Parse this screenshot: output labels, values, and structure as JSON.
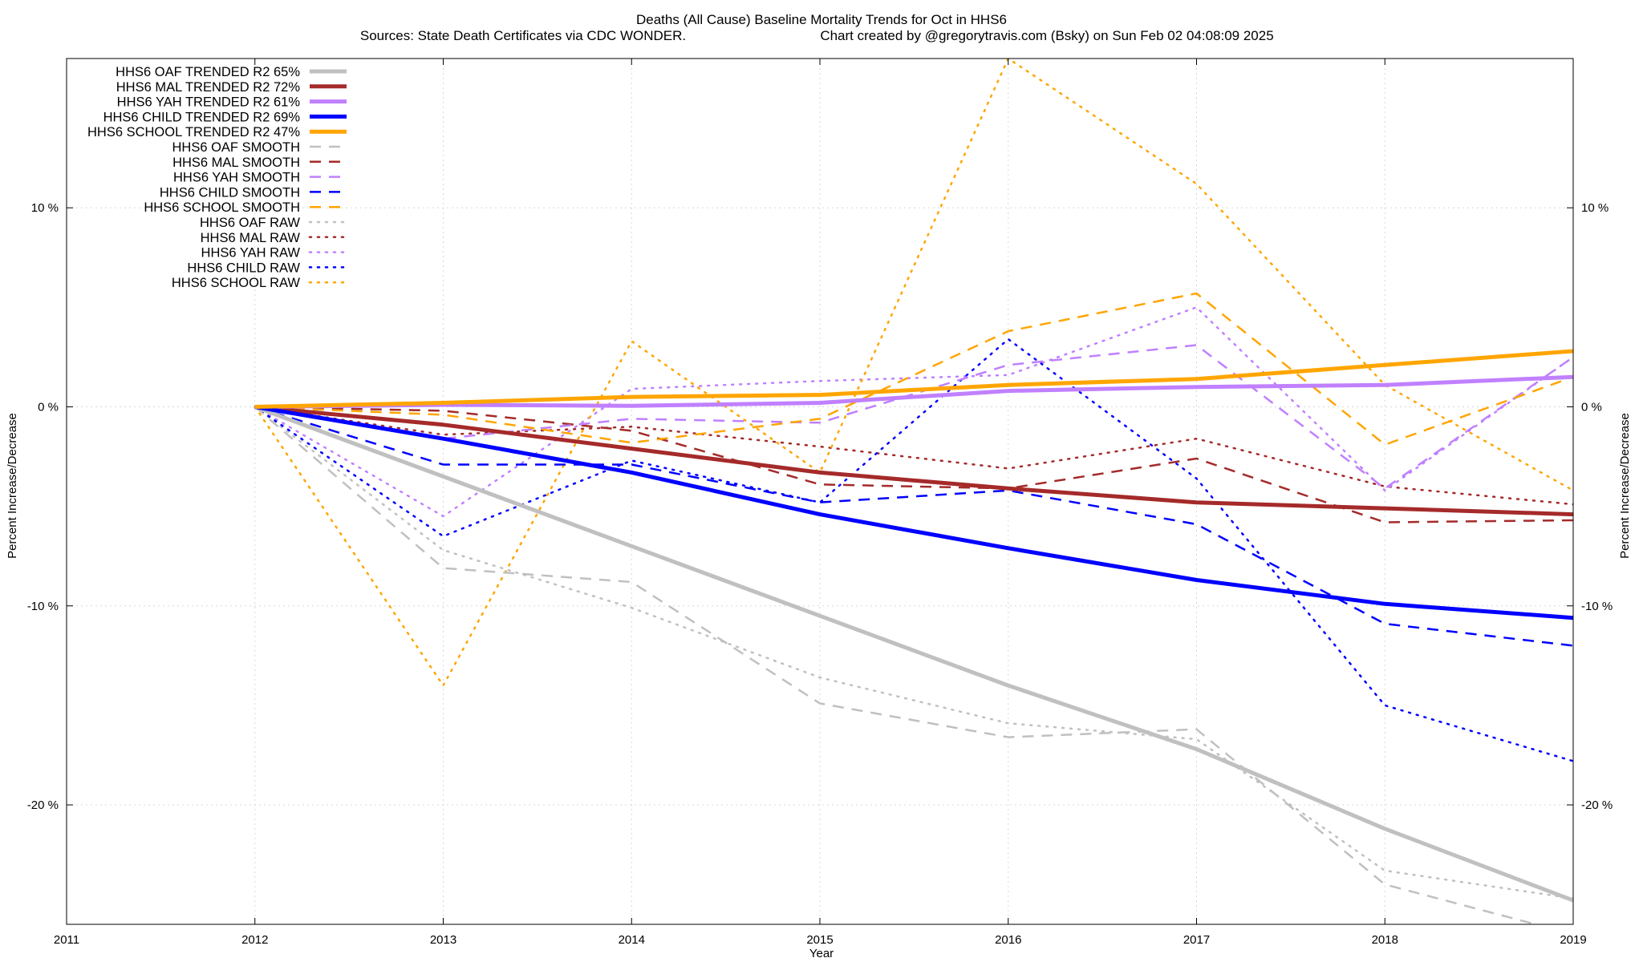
{
  "chart_data": {
    "type": "line",
    "title": "Deaths (All Cause)  Baseline Mortality Trends for Oct in HHS6",
    "subtitle_left": "Sources: State Death Certificates via CDC WONDER.",
    "subtitle_right": "Chart created by @gregorytravis.com (Bsky) on Sun Feb 02 04:08:09 2025",
    "xlabel": "Year",
    "ylabel": "Percent Increase/Decrease",
    "xlim": [
      2011,
      2019
    ],
    "ylim": [
      -26,
      17.5
    ],
    "x_ticks": [
      "2011",
      "2012",
      "2013",
      "2014",
      "2015",
      "2016",
      "2017",
      "2018",
      "2019"
    ],
    "y_ticks": [
      {
        "value": 10,
        "label": "10 %"
      },
      {
        "value": 0,
        "label": "0 %"
      },
      {
        "value": -10,
        "label": "-10 %"
      },
      {
        "value": -20,
        "label": "-20 %"
      }
    ],
    "grid": true,
    "legend_position": "top-left",
    "x": [
      2012,
      2013,
      2014,
      2015,
      2016,
      2017,
      2018,
      2019
    ],
    "series": [
      {
        "name": "HHS6 OAF TRENDED R2  65%",
        "style": "solid",
        "color": "#c0c0c0",
        "values": [
          0,
          -3.5,
          -7.0,
          -10.5,
          -14.0,
          -17.2,
          -21.2,
          -24.8
        ]
      },
      {
        "name": "HHS6 MAL TRENDED R2  72%",
        "style": "solid",
        "color": "#a52a2a",
        "values": [
          0,
          -0.9,
          -2.1,
          -3.3,
          -4.1,
          -4.8,
          -5.1,
          -5.4
        ]
      },
      {
        "name": "HHS6 YAH TRENDED R2  61%",
        "style": "solid",
        "color": "#c080ff",
        "values": [
          0,
          0.1,
          0.05,
          0.2,
          0.8,
          1.0,
          1.1,
          1.5
        ]
      },
      {
        "name": "HHS6 CHILD TRENDED R2  69%",
        "style": "solid",
        "color": "#0000ff",
        "values": [
          0,
          -1.6,
          -3.3,
          -5.4,
          -7.1,
          -8.7,
          -9.9,
          -10.6
        ]
      },
      {
        "name": "HHS6 SCHOOL TRENDED R2  47%",
        "style": "solid",
        "color": "#ffa500",
        "values": [
          0,
          0.2,
          0.5,
          0.6,
          1.1,
          1.4,
          2.1,
          2.8
        ]
      },
      {
        "name": "HHS6 OAF SMOOTH",
        "style": "dashed",
        "color": "#c0c0c0",
        "values": [
          0,
          -8.1,
          -8.8,
          -14.9,
          -16.6,
          -16.2,
          -24.0,
          -26.5
        ]
      },
      {
        "name": "HHS6 MAL SMOOTH",
        "style": "dashed",
        "color": "#a52a2a",
        "values": [
          0,
          -0.2,
          -1.2,
          -3.9,
          -4.1,
          -2.6,
          -5.8,
          -5.7
        ]
      },
      {
        "name": "HHS6 YAH SMOOTH",
        "style": "dashed",
        "color": "#c080ff",
        "values": [
          0,
          -1.6,
          -0.6,
          -0.8,
          2.1,
          3.1,
          -4.1,
          2.5
        ]
      },
      {
        "name": "HHS6 CHILD SMOOTH",
        "style": "dashed",
        "color": "#0000ff",
        "values": [
          0,
          -2.9,
          -2.9,
          -4.8,
          -4.2,
          -5.9,
          -10.9,
          -12.0
        ]
      },
      {
        "name": "HHS6 SCHOOL SMOOTH",
        "style": "dashed",
        "color": "#ffa500",
        "values": [
          0,
          -0.4,
          -1.8,
          -0.6,
          3.8,
          5.7,
          -1.9,
          1.5
        ]
      },
      {
        "name": "HHS6 OAF RAW",
        "style": "dotted",
        "color": "#c0c0c0",
        "values": [
          0,
          -7.2,
          -10.1,
          -13.6,
          -15.9,
          -16.7,
          -23.3,
          -24.7
        ]
      },
      {
        "name": "HHS6 MAL RAW",
        "style": "dotted",
        "color": "#a52a2a",
        "values": [
          0,
          -1.4,
          -1.0,
          -2.0,
          -3.1,
          -1.6,
          -4.0,
          -4.9
        ]
      },
      {
        "name": "HHS6 YAH RAW",
        "style": "dotted",
        "color": "#c080ff",
        "values": [
          0,
          -5.5,
          0.9,
          1.3,
          1.6,
          5.0,
          -4.2,
          2.5
        ]
      },
      {
        "name": "HHS6 CHILD RAW",
        "style": "dotted",
        "color": "#0000ff",
        "values": [
          0,
          -6.5,
          -2.7,
          -4.8,
          3.4,
          -3.6,
          -15.0,
          -17.8
        ]
      },
      {
        "name": "HHS6 SCHOOL RAW",
        "style": "dotted",
        "color": "#ffa500",
        "values": [
          0,
          -14.0,
          3.3,
          -3.3,
          17.5,
          11.2,
          1.1,
          -4.2
        ]
      }
    ]
  }
}
